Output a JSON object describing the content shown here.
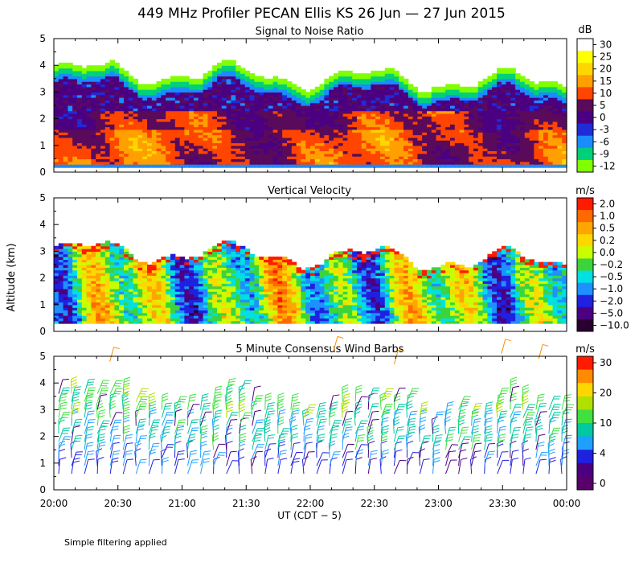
{
  "figure": {
    "title": "449 MHz Profiler PECAN Ellis KS 26 Jun — 27 Jun 2015",
    "ylabel": "Altitude (km)",
    "xlabel": "UT  (CDT − 5)",
    "footnote": "Simple filtering applied",
    "x_ticks": [
      "20:00",
      "20:30",
      "21:00",
      "21:30",
      "22:00",
      "22:30",
      "23:00",
      "23:30",
      "00:00"
    ],
    "y_ticks": [
      "0",
      "1",
      "2",
      "3",
      "4",
      "5"
    ]
  },
  "chart_data": [
    {
      "type": "heatmap",
      "title": "Signal to Noise Ratio",
      "units": "dB",
      "xlim": [
        "20:00",
        "00:00"
      ],
      "ylim": [
        0,
        5
      ],
      "colorbar": {
        "labels": [
          "30",
          "25",
          "20",
          "15",
          "10",
          "5",
          "0",
          "-3",
          "-6",
          "-9",
          "-12"
        ],
        "colors": [
          "#ffffff",
          "#ffff00",
          "#ffd700",
          "#ff9f00",
          "#ff4500",
          "#5a0a5a",
          "#4b0082",
          "#1f2bd8",
          "#1a8cff",
          "#00d07a",
          "#80ff00"
        ]
      },
      "field": {
        "min_alt": 0.2,
        "top_alt_range": [
          2.8,
          3.7
        ],
        "strong_layer": [
          0.3,
          2.3
        ]
      }
    },
    {
      "type": "heatmap",
      "title": "Vertical Velocity",
      "units": "m/s",
      "xlim": [
        "20:00",
        "00:00"
      ],
      "ylim": [
        0,
        5
      ],
      "colorbar": {
        "labels": [
          "2.0",
          "1.0",
          "0.5",
          "0.2",
          "0.0",
          "−0.2",
          "−0.5",
          "−1.0",
          "−2.0",
          "−5.0",
          "−10.0"
        ],
        "colors": [
          "#ff1a00",
          "#ff6a00",
          "#ffa500",
          "#ffd700",
          "#c8ff00",
          "#3cd43c",
          "#00e0e0",
          "#1e90ff",
          "#2020e0",
          "#4b0082",
          "#2a0030"
        ]
      },
      "field": {
        "min_alt": 0.3,
        "top_alt_range": [
          2.8,
          3.7
        ]
      }
    },
    {
      "type": "scatter",
      "title": "5 Minute Consensus Wind Barbs",
      "units": "m/s",
      "xlim": [
        "20:00",
        "00:00"
      ],
      "ylim": [
        0,
        5
      ],
      "colorbar": {
        "labels": [
          "30",
          "20",
          "10",
          "4",
          "0"
        ],
        "colors": [
          "#ff1a00",
          "#ff8c00",
          "#ffd700",
          "#b0e000",
          "#40e040",
          "#00c8a0",
          "#1ea0ff",
          "#2020e0",
          "#4b0082",
          "#5a006a"
        ]
      },
      "barb_levels_km": [
        0.6,
        0.9,
        1.2,
        1.5,
        1.8,
        2.1,
        2.4,
        2.7,
        3.0,
        3.3,
        3.6
      ],
      "barb_columns": 40
    }
  ]
}
